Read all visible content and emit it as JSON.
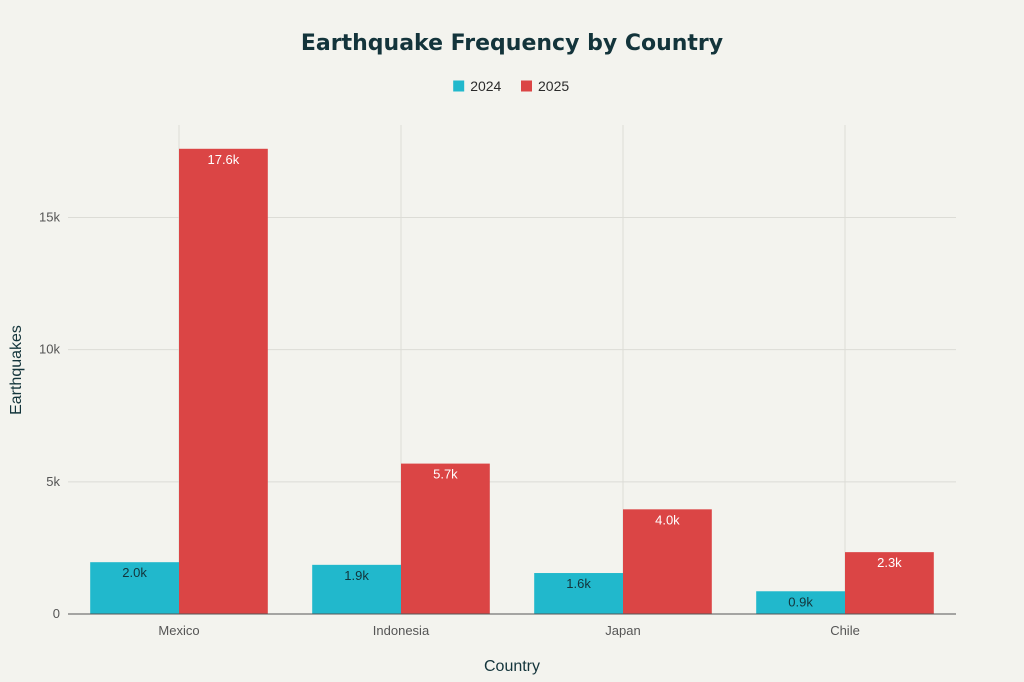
{
  "chart_data": {
    "type": "bar",
    "title": "Earthquake Frequency by Country",
    "xlabel": "Country",
    "ylabel": "Earthquakes",
    "categories": [
      "Mexico",
      "Indonesia",
      "Japan",
      "Chile"
    ],
    "series": [
      {
        "name": "2024",
        "color": "#21b8cc",
        "values": [
          1960,
          1860,
          1550,
          860
        ],
        "labels": [
          "2.0k",
          "1.9k",
          "1.6k",
          "0.9k"
        ],
        "label_color": "#13343b"
      },
      {
        "name": "2025",
        "color": "#db4545",
        "values": [
          17600,
          5690,
          3960,
          2340
        ],
        "labels": [
          "17.6k",
          "5.7k",
          "4.0k",
          "2.3k"
        ],
        "label_color": "#ffffff"
      }
    ],
    "ylim": [
      0,
      18500
    ],
    "yticks": [
      0,
      5000,
      10000,
      15000
    ],
    "ytick_labels": [
      "0",
      "5k",
      "10k",
      "15k"
    ],
    "grid": true,
    "legend_position": "top-center"
  }
}
